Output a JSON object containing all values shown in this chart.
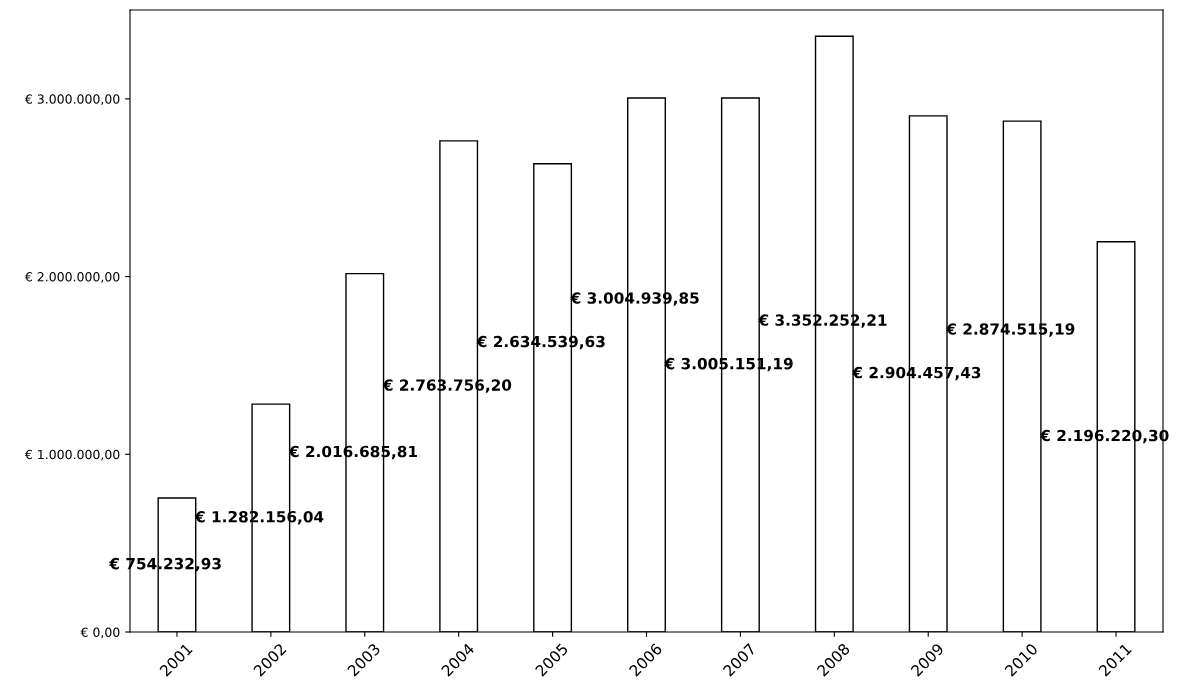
{
  "chart_data": {
    "type": "bar",
    "categories": [
      "2001",
      "2002",
      "2003",
      "2004",
      "2005",
      "2006",
      "2007",
      "2008",
      "2009",
      "2010",
      "2011"
    ],
    "values": [
      754232.93,
      1282156.04,
      2016685.81,
      2763756.2,
      2634539.63,
      3004939.85,
      3005151.19,
      3352252.21,
      2904457.43,
      2874515.19,
      2196220.3
    ],
    "value_labels": [
      "€ 754.232,93",
      "€ 1.282.156,04",
      "€ 2.016.685,81",
      "€ 2.763.756,20",
      "€ 2.634.539,63",
      "€ 3.004.939,85",
      "€ 3.005.151,19",
      "€ 3.352.252,21",
      "€ 2.904.457,43",
      "€ 2.874.515,19",
      "€ 2.196.220,30"
    ],
    "color": "#ffffff",
    "ylim": [
      0,
      3500000
    ],
    "yticks": [
      {
        "value": 0,
        "label": "€ 0,00"
      },
      {
        "value": 1000000,
        "label": "€ 1.000.000,00"
      },
      {
        "value": 2000000,
        "label": "€ 2.000.000,00"
      },
      {
        "value": 3000000,
        "label": "€ 3.000.000,00"
      }
    ],
    "grid": false,
    "legend": false
  }
}
